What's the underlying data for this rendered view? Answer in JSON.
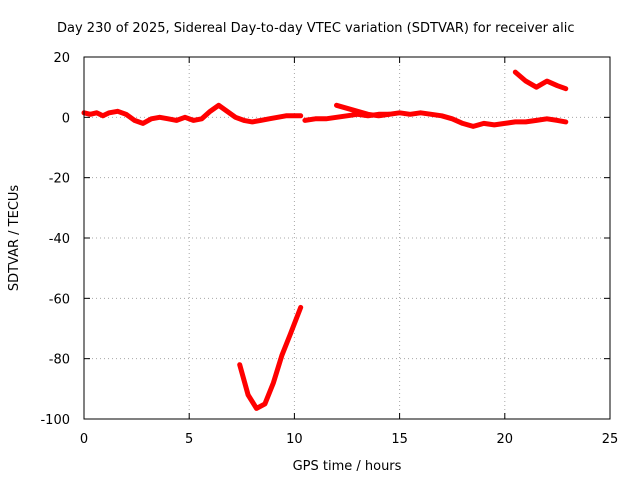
{
  "chart_data": {
    "type": "line",
    "title": "Day 230 of 2025, Sidereal Day-to-day VTEC variation (SDTVAR) for receiver alic",
    "xlabel": "GPS time / hours",
    "ylabel": "SDTVAR / TECUs",
    "xlim": [
      0,
      25
    ],
    "ylim": [
      -100,
      20
    ],
    "x_ticks": [
      "0",
      "5",
      "10",
      "15",
      "20",
      "25"
    ],
    "y_ticks": [
      "20",
      "0",
      "-20",
      "-40",
      "-60",
      "-80",
      "-100"
    ],
    "grid": true,
    "legend": "none",
    "color": "#ff0000",
    "series": [
      {
        "x": [
          0.0,
          0.3,
          0.6,
          0.9,
          1.2,
          1.6,
          2.0,
          2.4,
          2.8,
          3.2,
          3.6,
          4.0,
          4.4,
          4.8,
          5.2,
          5.6,
          6.0,
          6.4,
          6.8,
          7.2,
          7.6,
          8.0,
          8.4,
          8.8,
          9.2,
          9.6,
          10.0,
          10.3
        ],
        "y": [
          1.5,
          1.0,
          1.5,
          0.5,
          1.5,
          2.0,
          1.0,
          -1.0,
          -2.0,
          -0.5,
          0.0,
          -0.5,
          -1.0,
          0.0,
          -1.0,
          -0.5,
          2.0,
          4.0,
          2.0,
          0.0,
          -1.0,
          -1.5,
          -1.0,
          -0.5,
          0.0,
          0.5,
          0.5,
          0.5
        ]
      },
      {
        "x": [
          7.4,
          7.8,
          8.2,
          8.6,
          9.0,
          9.4,
          9.8,
          10.3
        ],
        "y": [
          -82,
          -92,
          -96.5,
          -95,
          -88,
          -79,
          -72,
          -63
        ]
      },
      {
        "x": [
          10.5,
          11.0,
          11.5,
          12.0,
          12.5,
          13.0,
          13.5,
          14.0,
          14.5,
          15.0,
          15.5,
          16.0,
          16.5,
          17.0,
          17.5,
          18.0,
          18.5,
          19.0,
          19.5,
          20.0,
          20.5,
          21.0,
          21.5,
          22.0,
          22.5,
          22.9
        ],
        "y": [
          -1.0,
          -0.5,
          -0.5,
          0.0,
          0.5,
          1.0,
          0.5,
          1.0,
          1.0,
          1.5,
          1.0,
          1.5,
          1.0,
          0.5,
          -0.5,
          -2.0,
          -3.0,
          -2.0,
          -2.5,
          -2.0,
          -1.5,
          -1.5,
          -1.0,
          -0.5,
          -1.0,
          -1.5
        ]
      },
      {
        "x": [
          12.0,
          12.5,
          13.0,
          13.5,
          14.0,
          14.5
        ],
        "y": [
          4.0,
          3.0,
          2.0,
          1.0,
          0.5,
          1.0
        ]
      },
      {
        "x": [
          20.5,
          21.0,
          21.5,
          22.0,
          22.5,
          22.9
        ],
        "y": [
          15.0,
          12.0,
          10.0,
          12.0,
          10.5,
          9.5
        ]
      }
    ]
  }
}
